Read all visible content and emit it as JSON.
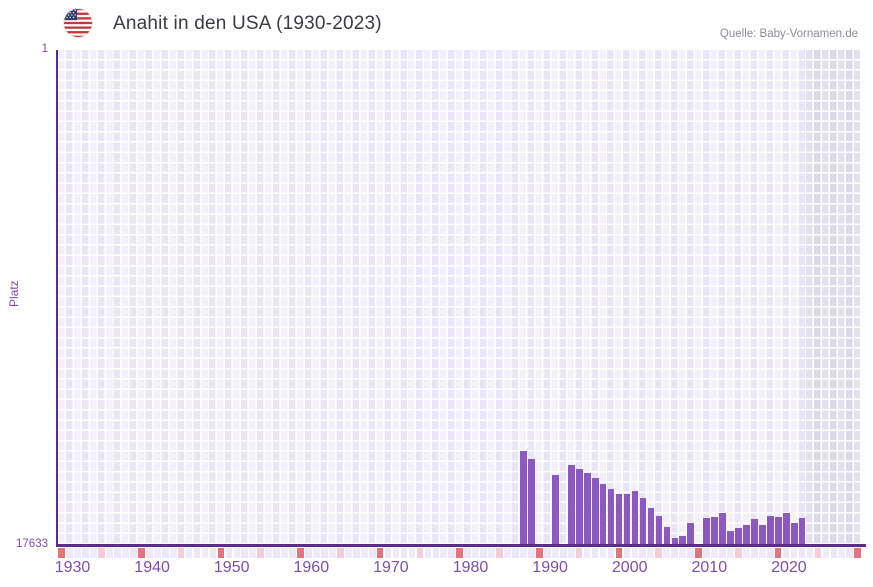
{
  "header": {
    "title": "Anahit in den USA (1930-2023)",
    "source": "Quelle: Baby-Vornamen.de",
    "flag_icon": "us-flag-icon"
  },
  "y_axis": {
    "label": "Platz",
    "top_tick": "1",
    "bottom_tick": "17633",
    "min": 1,
    "max": 17633,
    "inverted": true
  },
  "x_axis": {
    "tick_labels": [
      "1930",
      "1940",
      "1950",
      "1960",
      "1970",
      "1980",
      "1990",
      "2000",
      "2010",
      "2020"
    ],
    "timeline_start_year": 1930,
    "timeline_end_year": 2030,
    "data_end_year": 2023
  },
  "colors": {
    "bar": "#8c59c2",
    "axis": "#5b2c90",
    "tick_text": "#7a4fad",
    "title_text": "#3b3b42",
    "source_text": "#8e8e97",
    "grid_cell_light": "#f3f0fc",
    "grid_cell_alt": "#eae5f6",
    "future_cell_light": "#e4e1ec",
    "future_cell_alt": "#dcd9e6",
    "timeline_decade": "#e0757c",
    "timeline_half_decade": "#f4cdd5",
    "timeline_default_even": "#efecf9",
    "timeline_default_odd": "#ebe7f5"
  },
  "chart_data": {
    "type": "bar",
    "title": "Anahit in den USA (1930-2023)",
    "xlabel": "",
    "ylabel": "Platz",
    "ylim": [
      1,
      17633
    ],
    "y_axis_inverted": true,
    "x_range_shown": [
      1930,
      2030
    ],
    "grid": true,
    "series_name": "Platz (Rang des Vornamens Anahit in den USA)",
    "points": [
      {
        "year": 1988,
        "platz": 14330
      },
      {
        "year": 1989,
        "platz": 14590
      },
      {
        "year": 1992,
        "platz": 15180
      },
      {
        "year": 1994,
        "platz": 14830
      },
      {
        "year": 1995,
        "platz": 14945
      },
      {
        "year": 1996,
        "platz": 15100
      },
      {
        "year": 1997,
        "platz": 15265
      },
      {
        "year": 1998,
        "platz": 15505
      },
      {
        "year": 1999,
        "platz": 15655
      },
      {
        "year": 2000,
        "platz": 15835
      },
      {
        "year": 2001,
        "platz": 15835
      },
      {
        "year": 2002,
        "platz": 15750
      },
      {
        "year": 2003,
        "platz": 15990
      },
      {
        "year": 2004,
        "platz": 16345
      },
      {
        "year": 2005,
        "platz": 16620
      },
      {
        "year": 2006,
        "platz": 17020
      },
      {
        "year": 2007,
        "platz": 17410
      },
      {
        "year": 2008,
        "platz": 17340
      },
      {
        "year": 2009,
        "platz": 16900
      },
      {
        "year": 2011,
        "platz": 16700
      },
      {
        "year": 2012,
        "platz": 16665
      },
      {
        "year": 2013,
        "platz": 16510
      },
      {
        "year": 2014,
        "platz": 17175
      },
      {
        "year": 2015,
        "platz": 17055
      },
      {
        "year": 2016,
        "platz": 16960
      },
      {
        "year": 2017,
        "platz": 16725
      },
      {
        "year": 2018,
        "platz": 16960
      },
      {
        "year": 2019,
        "platz": 16630
      },
      {
        "year": 2020,
        "platz": 16665
      },
      {
        "year": 2021,
        "platz": 16510
      },
      {
        "year": 2022,
        "platz": 16900
      },
      {
        "year": 2023,
        "platz": 16690
      }
    ]
  }
}
